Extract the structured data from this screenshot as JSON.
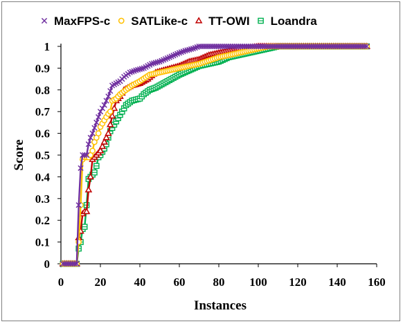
{
  "chart_data": {
    "type": "line",
    "xlabel": "Instances",
    "ylabel": "Score",
    "xlim": [
      0,
      160
    ],
    "ylim": [
      0,
      1
    ],
    "xticks": [
      0,
      20,
      40,
      60,
      80,
      100,
      120,
      140,
      160
    ],
    "yticks": [
      0,
      0.1,
      0.2,
      0.3,
      0.4,
      0.5,
      0.6,
      0.7,
      0.8,
      0.9,
      1
    ],
    "legend_position": "top",
    "grid": false,
    "series": [
      {
        "name": "MaxFPS-c",
        "color": "#7030a0",
        "marker": "x-icon",
        "points": [
          [
            1,
            0
          ],
          [
            8,
            0
          ],
          [
            9,
            0.27
          ],
          [
            10,
            0.44
          ],
          [
            11,
            0.5
          ],
          [
            13,
            0.5
          ],
          [
            14,
            0.55
          ],
          [
            15,
            0.58
          ],
          [
            16,
            0.6
          ],
          [
            18,
            0.65
          ],
          [
            20,
            0.7
          ],
          [
            22,
            0.73
          ],
          [
            24,
            0.77
          ],
          [
            26,
            0.82
          ],
          [
            28,
            0.83
          ],
          [
            30,
            0.84
          ],
          [
            32,
            0.86
          ],
          [
            35,
            0.88
          ],
          [
            38,
            0.89
          ],
          [
            42,
            0.9
          ],
          [
            46,
            0.92
          ],
          [
            50,
            0.93
          ],
          [
            55,
            0.95
          ],
          [
            60,
            0.97
          ],
          [
            63,
            0.98
          ],
          [
            67,
            0.99
          ],
          [
            70,
            1
          ],
          [
            155,
            1
          ]
        ]
      },
      {
        "name": "SATLike-c",
        "color": "#ffc000",
        "marker": "circle-icon",
        "points": [
          [
            1,
            0
          ],
          [
            8,
            0
          ],
          [
            9,
            0.1
          ],
          [
            10,
            0.27
          ],
          [
            11,
            0.48
          ],
          [
            12,
            0.49
          ],
          [
            14,
            0.49
          ],
          [
            15,
            0.5
          ],
          [
            16,
            0.52
          ],
          [
            17,
            0.56
          ],
          [
            18,
            0.58
          ],
          [
            19,
            0.6
          ],
          [
            20,
            0.63
          ],
          [
            22,
            0.66
          ],
          [
            24,
            0.69
          ],
          [
            25,
            0.7
          ],
          [
            26,
            0.75
          ],
          [
            28,
            0.76
          ],
          [
            30,
            0.78
          ],
          [
            33,
            0.8
          ],
          [
            36,
            0.82
          ],
          [
            40,
            0.84
          ],
          [
            45,
            0.87
          ],
          [
            50,
            0.88
          ],
          [
            55,
            0.89
          ],
          [
            60,
            0.9
          ],
          [
            65,
            0.91
          ],
          [
            70,
            0.92
          ],
          [
            80,
            0.95
          ],
          [
            90,
            0.97
          ],
          [
            100,
            0.99
          ],
          [
            105,
            1
          ],
          [
            155,
            1
          ]
        ]
      },
      {
        "name": "TT-OWI",
        "color": "#c00000",
        "marker": "triangle-icon",
        "points": [
          [
            1,
            0
          ],
          [
            8,
            0
          ],
          [
            9,
            0.12
          ],
          [
            10,
            0.15
          ],
          [
            11,
            0.23
          ],
          [
            12,
            0.24
          ],
          [
            13,
            0.24
          ],
          [
            14,
            0.34
          ],
          [
            15,
            0.4
          ],
          [
            16,
            0.48
          ],
          [
            18,
            0.5
          ],
          [
            20,
            0.52
          ],
          [
            22,
            0.56
          ],
          [
            24,
            0.6
          ],
          [
            26,
            0.68
          ],
          [
            28,
            0.75
          ],
          [
            30,
            0.77
          ],
          [
            32,
            0.8
          ],
          [
            34,
            0.81
          ],
          [
            36,
            0.82
          ],
          [
            40,
            0.83
          ],
          [
            44,
            0.85
          ],
          [
            48,
            0.88
          ],
          [
            52,
            0.89
          ],
          [
            56,
            0.9
          ],
          [
            60,
            0.91
          ],
          [
            65,
            0.93
          ],
          [
            70,
            0.94
          ],
          [
            75,
            0.96
          ],
          [
            80,
            0.97
          ],
          [
            90,
            0.99
          ],
          [
            100,
            1
          ],
          [
            155,
            1
          ]
        ]
      },
      {
        "name": "Loandra",
        "color": "#00b050",
        "marker": "square-icon",
        "points": [
          [
            1,
            0
          ],
          [
            8,
            0
          ],
          [
            9,
            0.07
          ],
          [
            10,
            0.1
          ],
          [
            11,
            0.16
          ],
          [
            12,
            0.17
          ],
          [
            13,
            0.27
          ],
          [
            14,
            0.39
          ],
          [
            15,
            0.4
          ],
          [
            16,
            0.41
          ],
          [
            17,
            0.42
          ],
          [
            18,
            0.45
          ],
          [
            19,
            0.49
          ],
          [
            20,
            0.5
          ],
          [
            22,
            0.53
          ],
          [
            23,
            0.55
          ],
          [
            24,
            0.58
          ],
          [
            25,
            0.61
          ],
          [
            27,
            0.64
          ],
          [
            29,
            0.67
          ],
          [
            31,
            0.7
          ],
          [
            33,
            0.73
          ],
          [
            36,
            0.75
          ],
          [
            40,
            0.76
          ],
          [
            42,
            0.78
          ],
          [
            45,
            0.8
          ],
          [
            48,
            0.81
          ],
          [
            52,
            0.83
          ],
          [
            56,
            0.85
          ],
          [
            60,
            0.87
          ],
          [
            65,
            0.89
          ],
          [
            70,
            0.91
          ],
          [
            75,
            0.92
          ],
          [
            80,
            0.93
          ],
          [
            85,
            0.95
          ],
          [
            90,
            0.96
          ],
          [
            95,
            0.97
          ],
          [
            100,
            0.98
          ],
          [
            105,
            0.99
          ],
          [
            110,
            1
          ],
          [
            155,
            1
          ]
        ]
      }
    ]
  }
}
